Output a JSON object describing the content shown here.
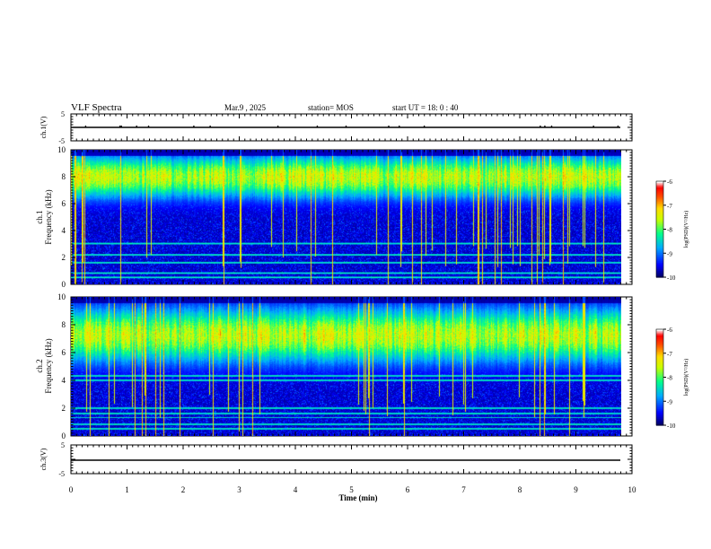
{
  "header": {
    "title": "VLF Spectra",
    "date": "Mar.9  , 2025",
    "station": "station= MOS",
    "start_ut": "start  UT  =   18: 0   : 40"
  },
  "chart_data": [
    {
      "type": "line",
      "name": "ch1-voltage",
      "ylabel": "ch.1(V)",
      "ylim": [
        -5,
        5
      ],
      "yticks": [
        "5",
        "-5"
      ],
      "xlim": [
        0,
        10
      ],
      "level": 0
    },
    {
      "type": "heatmap",
      "name": "ch1-spectrogram",
      "ylabel": "ch.1\nFrequency (kHz)",
      "ylabel_top": "ch.1",
      "ylabel_bottom": "Frequency (kHz)",
      "ylim": [
        0,
        10
      ],
      "yticks": [
        "0",
        "2",
        "4",
        "6",
        "8",
        "10"
      ],
      "xlim": [
        0,
        9.85
      ],
      "band_khz": [
        7,
        9
      ],
      "colorbar": {
        "range": [
          -10,
          -6
        ],
        "ticks": [
          "-6",
          "-7",
          "-8",
          "-9",
          "-10"
        ],
        "label": "log(PSD)(V²/Hz)"
      },
      "horizontal_lines_khz": [
        0.5,
        0.8,
        1.6,
        2.2,
        3.0
      ]
    },
    {
      "type": "heatmap",
      "name": "ch2-spectrogram",
      "ylabel": "ch.2\nFrequency (kHz)",
      "ylabel_top": "ch.2",
      "ylabel_bottom": "Frequency (kHz)",
      "ylim": [
        0,
        10
      ],
      "yticks": [
        "0",
        "2",
        "4",
        "6",
        "8",
        "10"
      ],
      "xlim": [
        0,
        9.85
      ],
      "band_khz": [
        6,
        8.5
      ],
      "colorbar": {
        "range": [
          -10,
          -6
        ],
        "ticks": [
          "-6",
          "-7",
          "-8",
          "-9",
          "-10"
        ],
        "label": "log(PSD)(V²/Hz)"
      },
      "horizontal_lines_khz": [
        0.5,
        0.8,
        1.3,
        1.6,
        2.0,
        4.0,
        4.3
      ]
    },
    {
      "type": "line",
      "name": "ch3-voltage",
      "ylabel": "ch.3(V)",
      "ylim": [
        -5,
        5
      ],
      "yticks": [
        "5",
        "-5"
      ],
      "xlim": [
        0,
        10
      ],
      "level": -1.5,
      "xlabel": "Time  (min)",
      "xticks": [
        "0",
        "1",
        "2",
        "3",
        "4",
        "5",
        "6",
        "7",
        "8",
        "9",
        "10"
      ]
    }
  ],
  "colors": {
    "background": "#000000",
    "axis": "#000000",
    "colormap": [
      "#00008b",
      "#0000ff",
      "#00bfff",
      "#00ff7f",
      "#ffff00",
      "#ff7f00",
      "#ff0000",
      "#ffffff"
    ]
  }
}
